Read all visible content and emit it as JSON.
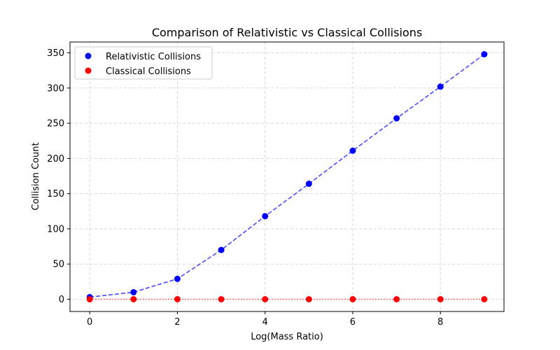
{
  "chart_data": {
    "type": "scatter",
    "title": "Comparison of Relativistic vs Classical Collisions",
    "xlabel": "Log(Mass Ratio)",
    "ylabel": "Collision Count",
    "x": [
      0,
      1,
      2,
      3,
      4,
      5,
      6,
      7,
      8,
      9
    ],
    "xlim": [
      -0.45,
      9.45
    ],
    "ylim": [
      -17.4,
      365.4
    ],
    "xticks": [
      0,
      2,
      4,
      6,
      8
    ],
    "yticks": [
      0,
      50,
      100,
      150,
      200,
      250,
      300,
      350
    ],
    "grid": true,
    "legend_position": "top-left",
    "series": [
      {
        "name": "Relativistic Collisions",
        "values": [
          3,
          10,
          29,
          70,
          118,
          164,
          211,
          257,
          302,
          348
        ],
        "color": "#0000ff",
        "line_style": "dashed"
      },
      {
        "name": "Classical Collisions",
        "values": [
          0,
          0,
          0,
          0,
          0,
          0,
          0,
          0,
          0,
          0
        ],
        "color": "#ff0000",
        "line_style": "dotted"
      }
    ]
  }
}
